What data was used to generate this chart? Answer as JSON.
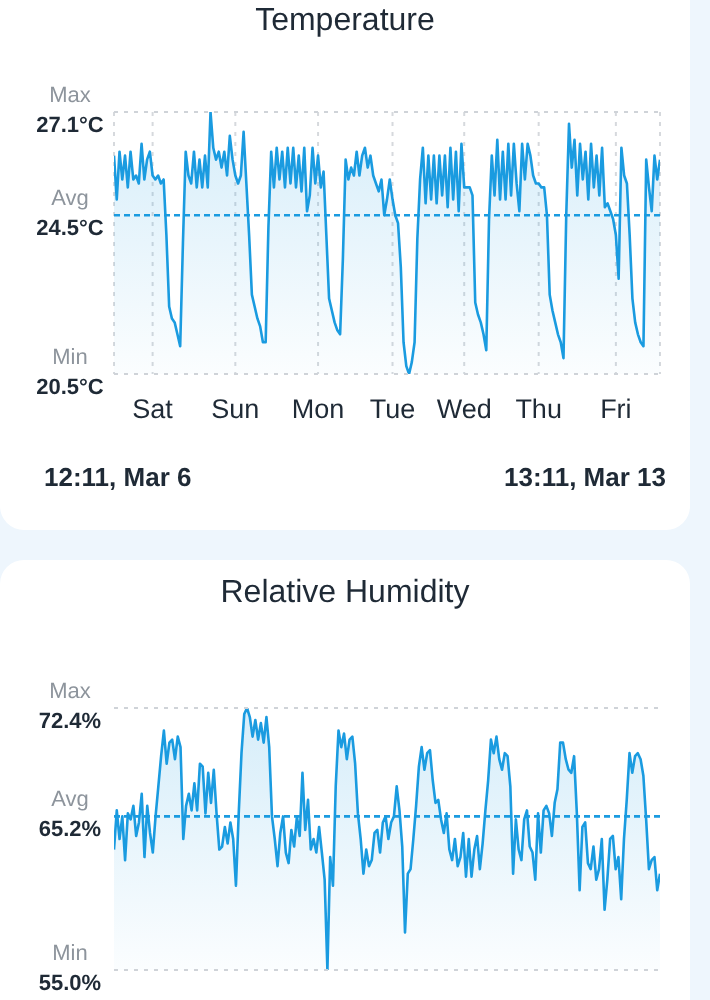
{
  "chart_data": [
    {
      "type": "area",
      "title": "Temperature",
      "grid": "x",
      "ylim": [
        20.5,
        27.1
      ],
      "categories": [
        null,
        null,
        null,
        null,
        null,
        null,
        null,
        null,
        null,
        null,
        null,
        null,
        null,
        null,
        "Sat",
        null,
        null,
        null,
        null,
        null,
        null,
        null,
        null,
        null,
        null,
        null,
        null,
        null,
        null,
        null,
        null,
        null,
        null,
        null,
        null,
        null,
        null,
        null,
        null,
        null,
        null,
        null,
        null,
        null,
        "Sun",
        null,
        null,
        null,
        null,
        null,
        null,
        null,
        null,
        null,
        null,
        null,
        null,
        null,
        null,
        null,
        null,
        null,
        null,
        null,
        null,
        null,
        null,
        null,
        null,
        null,
        null,
        null,
        null,
        null,
        "Mon",
        null,
        null,
        null,
        null,
        null,
        null,
        null,
        null,
        null,
        null,
        null,
        null,
        null,
        null,
        null,
        null,
        null,
        null,
        null,
        null,
        null,
        null,
        null,
        null,
        null,
        null,
        "Tue",
        null,
        null,
        null,
        null,
        null,
        null,
        null,
        null,
        null,
        null,
        null,
        null,
        null,
        null,
        null,
        null,
        null,
        null,
        null,
        null,
        null,
        null,
        null,
        null,
        null,
        "Wed",
        null,
        null,
        null,
        null,
        null,
        null,
        null,
        null,
        null,
        null,
        null,
        null,
        null,
        null,
        null,
        null,
        null,
        null,
        null,
        null,
        null,
        null,
        null,
        null,
        null,
        null,
        "Thu",
        null,
        null,
        null,
        null,
        null,
        null,
        null,
        null,
        null,
        null,
        null,
        null,
        null,
        null,
        null,
        null,
        null,
        null,
        null,
        null,
        null,
        null,
        null,
        null,
        null,
        null,
        null,
        "Fri",
        null,
        null,
        null,
        null,
        null,
        null,
        null,
        null,
        null,
        null,
        null,
        null,
        null,
        null,
        null,
        null
      ],
      "yticks": [
        {
          "value": 20.5,
          "label": "20.5°C"
        },
        {
          "value": 24.5,
          "label": "24.5°C"
        },
        {
          "value": 27.1,
          "label": "27.1°C"
        }
      ],
      "ref_lines": [
        {
          "axis": "y",
          "value": 27.1,
          "label": "Max",
          "color": "#cfd3d8",
          "line_style": "dotted"
        },
        {
          "axis": "y",
          "value": 24.5,
          "label": "Avg",
          "color": "#1a9be0",
          "line_style": "dashed"
        },
        {
          "axis": "y",
          "value": 20.5,
          "label": "Min",
          "color": "#cfd3d8",
          "line_style": "dotted"
        }
      ],
      "annotations": [
        "12:11, Mar 6",
        "13:11, Mar 13"
      ],
      "series": [
        {
          "color": "#1a9be0",
          "values": [
            26.0,
            24.9,
            26.1,
            25.4,
            26.0,
            25.2,
            26.1,
            25.4,
            25.5,
            25.3,
            26.3,
            25.4,
            25.9,
            26.1,
            25.5,
            25.4,
            25.5,
            25.3,
            25.4,
            24.0,
            22.2,
            21.9,
            21.8,
            21.5,
            21.2,
            23.8,
            26.1,
            25.5,
            25.3,
            26.1,
            25.2,
            25.9,
            25.2,
            26.0,
            25.2,
            27.1,
            26.2,
            25.9,
            26.1,
            25.7,
            26.1,
            25.5,
            26.5,
            25.9,
            25.5,
            25.3,
            25.5,
            26.6,
            25.3,
            24.0,
            22.5,
            22.2,
            21.9,
            21.7,
            21.3,
            21.3,
            24.2,
            26.1,
            25.2,
            26.2,
            25.4,
            26.1,
            25.2,
            26.2,
            25.3,
            26.2,
            25.2,
            26.0,
            25.1,
            26.2,
            24.6,
            25.0,
            26.2,
            25.3,
            26.0,
            25.2,
            25.6,
            24.0,
            22.4,
            22.1,
            21.8,
            21.6,
            21.5,
            23.4,
            25.9,
            25.4,
            25.7,
            25.5,
            26.1,
            25.5,
            26.0,
            26.2,
            25.7,
            26.0,
            25.5,
            25.3,
            25.1,
            25.4,
            24.5,
            24.9,
            25.4,
            24.9,
            24.5,
            24.3,
            23.2,
            21.3,
            20.7,
            20.5,
            20.8,
            21.3,
            23.9,
            25.4,
            26.2,
            24.8,
            26.0,
            24.9,
            26.0,
            24.8,
            26.0,
            25.0,
            26.0,
            24.7,
            26.2,
            24.9,
            26.1,
            24.6,
            26.3,
            25.2,
            25.2,
            25.2,
            25.0,
            22.3,
            22.0,
            21.8,
            21.5,
            21.1,
            24.4,
            26.0,
            25.0,
            26.4,
            24.9,
            26.1,
            24.9,
            26.3,
            25.0,
            26.3,
            25.3,
            24.6,
            26.3,
            25.4,
            26.3,
            26.0,
            25.5,
            25.3,
            25.3,
            25.2,
            25.2,
            24.5,
            22.5,
            22.1,
            21.8,
            21.5,
            21.3,
            20.9,
            24.5,
            26.8,
            25.7,
            26.4,
            25.0,
            26.3,
            25.4,
            26.1,
            24.9,
            26.3,
            25.2,
            26.0,
            25.0,
            26.2,
            24.7,
            24.8,
            24.6,
            24.4,
            24.0,
            22.9,
            26.2,
            25.5,
            25.3,
            24.0,
            22.4,
            21.8,
            21.5,
            21.3,
            21.2,
            25.9,
            25.2,
            24.6,
            26.0,
            25.4,
            25.9
          ]
        }
      ]
    },
    {
      "type": "area",
      "title": "Relative Humidity",
      "tick_labels": "y",
      "ylim": [
        55.0,
        72.4
      ],
      "categories": [
        null,
        null,
        null,
        null,
        null,
        null,
        null,
        null,
        null,
        null,
        null,
        null,
        null,
        null,
        null,
        null,
        null,
        null,
        null,
        null,
        null,
        null,
        null,
        null,
        null,
        null,
        null,
        null,
        null,
        null,
        null,
        null,
        null,
        null,
        null,
        null,
        null,
        null,
        null,
        null,
        null,
        null,
        null,
        null,
        null,
        null,
        null,
        null,
        null,
        null,
        null,
        null,
        null,
        null,
        null,
        null,
        null,
        null,
        null,
        null,
        null,
        null,
        null,
        null,
        null,
        null,
        null,
        null,
        null,
        null,
        null,
        null,
        null,
        null,
        null,
        null,
        null,
        null,
        null,
        null,
        null,
        null,
        null,
        null,
        null,
        null,
        null,
        null,
        null,
        null,
        null,
        null,
        null,
        null,
        null,
        null,
        null,
        null,
        null,
        null,
        null,
        null,
        null,
        null,
        null,
        null,
        null,
        null,
        null,
        null,
        null,
        null,
        null,
        null,
        null,
        null,
        null,
        null,
        null,
        null,
        null,
        null,
        null,
        null,
        null,
        null,
        null,
        null,
        null,
        null,
        null,
        null,
        null,
        null,
        null,
        null,
        null,
        null,
        null,
        null,
        null,
        null,
        null,
        null,
        null,
        null,
        null,
        null,
        null,
        null,
        null,
        null,
        null,
        null,
        null,
        null,
        null,
        null,
        null,
        null,
        null,
        null,
        null,
        null,
        null,
        null,
        null,
        null,
        null,
        null,
        null,
        null,
        null,
        null,
        null,
        null,
        null,
        null,
        null,
        null,
        null,
        null,
        null,
        null,
        null,
        null,
        null,
        null,
        null,
        null,
        null,
        null,
        null,
        null,
        null,
        null,
        null,
        null
      ],
      "yticks": [
        {
          "value": 55.0,
          "label": "55.0%"
        },
        {
          "value": 65.2,
          "label": "65.2%"
        },
        {
          "value": 72.4,
          "label": "72.4%"
        }
      ],
      "ref_lines": [
        {
          "axis": "y",
          "value": 72.4,
          "label": "Max",
          "color": "#cfd3d8",
          "line_style": "dotted"
        },
        {
          "axis": "y",
          "value": 65.2,
          "label": "Avg",
          "color": "#1a9be0",
          "line_style": "dashed"
        },
        {
          "axis": "y",
          "value": 55.0,
          "label": "Min",
          "color": "#cfd3d8",
          "line_style": "dotted"
        }
      ],
      "series": [
        {
          "color": "#1a9be0",
          "values": [
            63.0,
            65.6,
            63.7,
            65.2,
            62.3,
            65.4,
            65.0,
            65.9,
            63.9,
            64.8,
            66.7,
            62.5,
            65.9,
            64.1,
            62.8,
            65.2,
            67.2,
            69.2,
            70.9,
            68.7,
            70.1,
            70.3,
            69.0,
            70.5,
            69.8,
            63.7,
            65.9,
            66.7,
            65.6,
            67.4,
            65.6,
            68.7,
            68.5,
            65.4,
            68.1,
            66.1,
            68.3,
            65.4,
            63.0,
            63.2,
            64.5,
            63.4,
            64.8,
            63.7,
            60.6,
            65.4,
            69.4,
            72.0,
            72.4,
            71.8,
            70.5,
            71.6,
            70.3,
            71.4,
            70.1,
            71.8,
            69.8,
            65.2,
            63.7,
            61.9,
            64.1,
            65.2,
            62.8,
            62.1,
            64.3,
            63.2,
            65.2,
            63.9,
            68.1,
            64.3,
            66.3,
            63.0,
            63.7,
            62.8,
            64.5,
            62.8,
            61.0,
            55.0,
            62.5,
            60.6,
            67.2,
            70.9,
            69.8,
            70.7,
            69.0,
            70.3,
            70.5,
            68.7,
            65.4,
            63.7,
            61.4,
            63.0,
            61.9,
            62.3,
            64.1,
            64.3,
            62.8,
            64.8,
            65.2,
            63.7,
            64.8,
            65.2,
            67.2,
            65.6,
            63.2,
            57.5,
            61.4,
            61.7,
            63.7,
            65.9,
            68.5,
            69.8,
            68.3,
            69.4,
            69.6,
            67.6,
            66.1,
            66.3,
            65.0,
            64.1,
            65.4,
            63.0,
            62.3,
            63.7,
            61.9,
            62.5,
            64.1,
            61.2,
            63.7,
            61.2,
            63.0,
            63.9,
            61.7,
            63.4,
            65.6,
            67.6,
            70.3,
            69.4,
            70.5,
            69.0,
            68.3,
            69.4,
            69.2,
            67.2,
            61.4,
            65.0,
            63.0,
            62.3,
            65.0,
            65.6,
            63.2,
            62.8,
            61.0,
            65.4,
            62.8,
            65.6,
            65.9,
            65.4,
            63.9,
            66.1,
            67.0,
            70.1,
            70.1,
            69.0,
            68.3,
            68.1,
            69.2,
            65.4,
            60.3,
            64.5,
            64.8,
            62.1,
            61.7,
            63.2,
            61.0,
            61.7,
            63.7,
            59.0,
            61.0,
            63.7,
            63.9,
            61.7,
            62.5,
            59.7,
            63.7,
            66.3,
            69.4,
            68.1,
            69.2,
            69.4,
            69.0,
            67.9,
            65.0,
            61.7,
            62.3,
            62.5,
            60.3,
            61.4
          ]
        }
      ]
    }
  ]
}
